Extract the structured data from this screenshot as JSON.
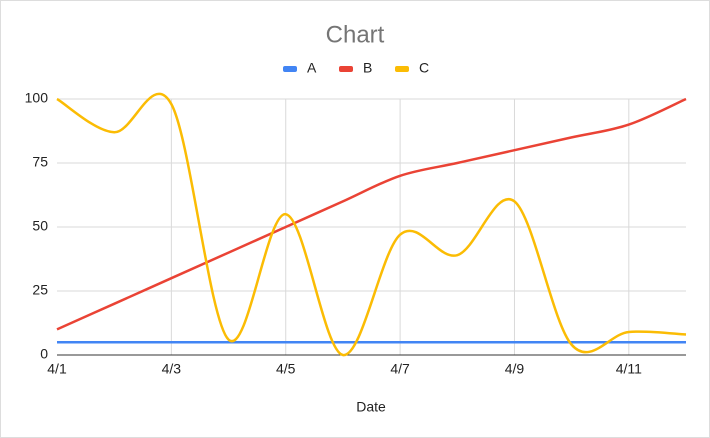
{
  "chart_data": {
    "type": "line",
    "title": "Chart",
    "x_label": "Date",
    "categories": [
      "4/1",
      null,
      "4/3",
      null,
      "4/5",
      null,
      "4/7",
      null,
      "4/9",
      null,
      "4/11",
      null
    ],
    "series": [
      {
        "name": "A",
        "color": "#4285f4",
        "values": [
          5,
          5,
          5,
          5,
          5,
          5,
          5,
          5,
          5,
          5,
          5,
          5
        ]
      },
      {
        "name": "B",
        "color": "#ea4335",
        "values": [
          10,
          20,
          30,
          40,
          50,
          60,
          70,
          75,
          80,
          85,
          90,
          100
        ]
      },
      {
        "name": "C",
        "color": "#fbbc04",
        "values": [
          100,
          87,
          98,
          6,
          55,
          0,
          47,
          39,
          60,
          4,
          9,
          8
        ]
      }
    ],
    "ylim": [
      0,
      100
    ],
    "yticks": [
      0,
      25,
      50,
      75,
      100
    ],
    "grid": true,
    "legend": "top",
    "smooth": true
  }
}
